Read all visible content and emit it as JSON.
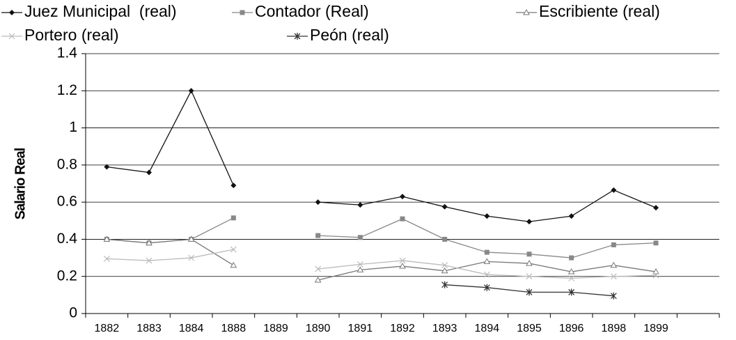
{
  "chart_data": {
    "type": "line",
    "ylabel": "Salario Real",
    "categories": [
      "1882",
      "1883",
      "1884",
      "1888",
      "1889",
      "1890",
      "1891",
      "1892",
      "1893",
      "1894",
      "1895",
      "1896",
      "1898",
      "1899",
      null
    ],
    "series": [
      {
        "name": "Juez Municipal  (real)",
        "color": "#111111",
        "marker": "diamond",
        "values": [
          0.79,
          0.76,
          1.2,
          0.69,
          null,
          0.6,
          0.585,
          0.63,
          0.575,
          0.525,
          0.495,
          0.525,
          0.665,
          0.57,
          null
        ]
      },
      {
        "name": "Contador (Real)",
        "color": "#888888",
        "marker": "square",
        "values": [
          0.4,
          0.38,
          0.4,
          0.515,
          null,
          0.42,
          0.41,
          0.51,
          0.4,
          0.33,
          0.32,
          0.3,
          0.37,
          0.38,
          null
        ]
      },
      {
        "name": "Escribiente (real)",
        "color": "#777777",
        "marker": "triangle",
        "values": [
          0.4,
          0.38,
          0.4,
          0.26,
          null,
          0.18,
          0.235,
          0.255,
          0.23,
          0.28,
          0.27,
          0.225,
          0.26,
          0.225,
          null
        ]
      },
      {
        "name": "Portero (real)",
        "color": "#bbbbbb",
        "marker": "x",
        "values": [
          0.295,
          0.285,
          0.3,
          0.345,
          null,
          0.24,
          0.265,
          0.285,
          0.26,
          0.21,
          0.2,
          0.19,
          0.2,
          0.205,
          null
        ]
      },
      {
        "name": "Peón (real)",
        "color": "#333333",
        "marker": "asterisk",
        "values": [
          null,
          null,
          null,
          null,
          null,
          null,
          null,
          null,
          0.155,
          0.14,
          0.115,
          0.115,
          0.095,
          null,
          null
        ]
      }
    ],
    "ylim": [
      0,
      1.4
    ],
    "yticks": [
      0,
      0.2,
      0.4,
      0.6,
      0.8,
      1,
      1.2,
      1.4
    ],
    "grid": true
  }
}
